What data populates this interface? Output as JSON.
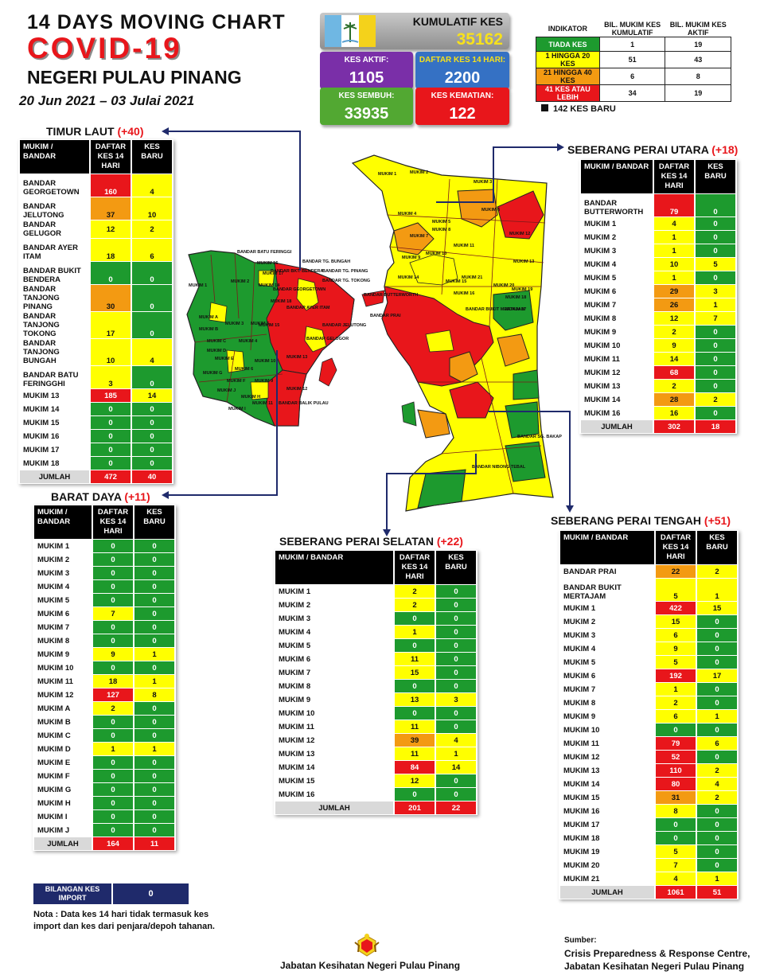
{
  "header": {
    "line1": "14  DAYS MOVING CHART",
    "line2": "COVID-19",
    "line3": "NEGERI PULAU PINANG",
    "dates": "20 Jun 2021 – 03 Julai 2021"
  },
  "kpi": {
    "kumulatif_label": "KUMULATIF KES",
    "kumulatif_value": "35162",
    "aktif_label": "KES AKTIF:",
    "aktif_value": "1105",
    "daftar_label": "DAFTAR KES 14 HARI:",
    "daftar_value": "2200",
    "sembuh_label": "KES SEMBUH:",
    "sembuh_value": "33935",
    "kematian_label": "KES KEMATIAN:",
    "kematian_value": "122"
  },
  "indicator": {
    "headers": [
      "INDIKATOR",
      "BIL. MUKIM KES KUMULATIF",
      "BIL. MUKIM KES AKTIF"
    ],
    "rows": [
      {
        "label": "TIADA KES",
        "kumulatif": "1",
        "aktif": "19",
        "color": "#1d9a2e",
        "text": "#ffffff"
      },
      {
        "label": "1 HINGGA 20 KES",
        "kumulatif": "51",
        "aktif": "43",
        "color": "#ffff00",
        "text": "#111111"
      },
      {
        "label": "21 HINGGA 40 KES",
        "kumulatif": "6",
        "aktif": "8",
        "color": "#f39a12",
        "text": "#111111"
      },
      {
        "label": "41 KES ATAU LEBIH",
        "kumulatif": "34",
        "aktif": "19",
        "color": "#e8161b",
        "text": "#ffffff"
      }
    ],
    "new_cases": "142 KES BARU"
  },
  "colors": {
    "green": "#1d9a2e",
    "yellow": "#ffff00",
    "orange": "#f39a12",
    "red": "#e8161b",
    "navy": "#1f2a6b"
  },
  "col_headers": {
    "mukim_bandar": "MUKIM / BANDAR",
    "daftar": "DAFTAR KES 14 HARI",
    "baru": "KES BARU",
    "total": "JUMLAH"
  },
  "sections": {
    "timur_laut": {
      "title": "TIMUR LAUT",
      "inc": "(+40)",
      "rows": [
        [
          "BANDAR GEORGETOWN",
          "160",
          "4"
        ],
        [
          "BANDAR JELUTONG",
          "37",
          "10"
        ],
        [
          "BANDAR GELUGOR",
          "12",
          "2"
        ],
        [
          "BANDAR AYER ITAM",
          "18",
          "6"
        ],
        [
          "BANDAR BUKIT BENDERA",
          "0",
          "0"
        ],
        [
          "BANDAR TANJONG PINANG",
          "30",
          "0"
        ],
        [
          "BANDAR TANJONG TOKONG",
          "17",
          "0"
        ],
        [
          "BANDAR TANJONG BUNGAH",
          "10",
          "4"
        ],
        [
          "BANDAR BATU FERINGGHI",
          "3",
          "0"
        ],
        [
          "MUKIM 13",
          "185",
          "14"
        ],
        [
          "MUKIM 14",
          "0",
          "0"
        ],
        [
          "MUKIM 15",
          "0",
          "0"
        ],
        [
          "MUKIM 16",
          "0",
          "0"
        ],
        [
          "MUKIM 17",
          "0",
          "0"
        ],
        [
          "MUKIM 18",
          "0",
          "0"
        ]
      ],
      "total": [
        "472",
        "40"
      ]
    },
    "barat_daya": {
      "title": "BARAT DAYA",
      "inc": "(+11)",
      "rows": [
        [
          "MUKIM 1",
          "0",
          "0"
        ],
        [
          "MUKIM 2",
          "0",
          "0"
        ],
        [
          "MUKIM 3",
          "0",
          "0"
        ],
        [
          "MUKIM 4",
          "0",
          "0"
        ],
        [
          "MUKIM 5",
          "0",
          "0"
        ],
        [
          "MUKIM 6",
          "7",
          "0"
        ],
        [
          "MUKIM 7",
          "0",
          "0"
        ],
        [
          "MUKIM 8",
          "0",
          "0"
        ],
        [
          "MUKIM 9",
          "9",
          "1"
        ],
        [
          "MUKIM 10",
          "0",
          "0"
        ],
        [
          "MUKIM 11",
          "18",
          "1"
        ],
        [
          "MUKIM 12",
          "127",
          "8"
        ],
        [
          "MUKIM A",
          "2",
          "0"
        ],
        [
          "MUKIM B",
          "0",
          "0"
        ],
        [
          "MUKIM C",
          "0",
          "0"
        ],
        [
          "MUKIM D",
          "1",
          "1"
        ],
        [
          "MUKIM E",
          "0",
          "0"
        ],
        [
          "MUKIM F",
          "0",
          "0"
        ],
        [
          "MUKIM G",
          "0",
          "0"
        ],
        [
          "MUKIM H",
          "0",
          "0"
        ],
        [
          "MUKIM I",
          "0",
          "0"
        ],
        [
          "MUKIM J",
          "0",
          "0"
        ]
      ],
      "total": [
        "164",
        "11"
      ]
    },
    "spu": {
      "title": "SEBERANG PERAI UTARA",
      "inc": "(+18)",
      "rows": [
        [
          "BANDAR BUTTERWORTH",
          "79",
          "0"
        ],
        [
          "MUKIM 1",
          "4",
          "0"
        ],
        [
          "MUKIM 2",
          "1",
          "0"
        ],
        [
          "MUKIM 3",
          "1",
          "0"
        ],
        [
          "MUKIM 4",
          "10",
          "5"
        ],
        [
          "MUKIM 5",
          "1",
          "0"
        ],
        [
          "MUKIM 6",
          "29",
          "3"
        ],
        [
          "MUKIM 7",
          "26",
          "1"
        ],
        [
          "MUKIM 8",
          "12",
          "7"
        ],
        [
          "MUKIM 9",
          "2",
          "0"
        ],
        [
          "MUKIM 10",
          "9",
          "0"
        ],
        [
          "MUKIM 11",
          "14",
          "0"
        ],
        [
          "MUKIM 12",
          "68",
          "0"
        ],
        [
          "MUKIM 13",
          "2",
          "0"
        ],
        [
          "MUKIM 14",
          "28",
          "2"
        ],
        [
          "MUKIM 16",
          "16",
          "0"
        ]
      ],
      "total": [
        "302",
        "18"
      ]
    },
    "sps": {
      "title": "SEBERANG PERAI SELATAN",
      "inc": "(+22)",
      "rows": [
        [
          "MUKIM 1",
          "2",
          "0"
        ],
        [
          "MUKIM 2",
          "2",
          "0"
        ],
        [
          "MUKIM 3",
          "0",
          "0"
        ],
        [
          "MUKIM 4",
          "1",
          "0"
        ],
        [
          "MUKIM 5",
          "0",
          "0"
        ],
        [
          "MUKIM 6",
          "11",
          "0"
        ],
        [
          "MUKIM 7",
          "15",
          "0"
        ],
        [
          "MUKIM 8",
          "0",
          "0"
        ],
        [
          "MUKIM 9",
          "13",
          "3"
        ],
        [
          "MUKIM 10",
          "0",
          "0"
        ],
        [
          "MUKIM 11",
          "11",
          "0"
        ],
        [
          "MUKIM 12",
          "39",
          "4"
        ],
        [
          "MUKIM 13",
          "11",
          "1"
        ],
        [
          "MUKIM 14",
          "84",
          "14"
        ],
        [
          "MUKIM 15",
          "12",
          "0"
        ],
        [
          "MUKIM 16",
          "0",
          "0"
        ]
      ],
      "total": [
        "201",
        "22"
      ]
    },
    "spt": {
      "title": "SEBERANG PERAI TENGAH",
      "inc": "(+51)",
      "rows": [
        [
          "BANDAR PRAI",
          "22",
          "2"
        ],
        [
          "BANDAR BUKIT MERTAJAM",
          "5",
          "1"
        ],
        [
          "MUKIM 1",
          "422",
          "15"
        ],
        [
          "MUKIM 2",
          "15",
          "0"
        ],
        [
          "MUKIM 3",
          "6",
          "0"
        ],
        [
          "MUKIM 4",
          "9",
          "0"
        ],
        [
          "MUKIM 5",
          "5",
          "0"
        ],
        [
          "MUKIM 6",
          "192",
          "17"
        ],
        [
          "MUKIM 7",
          "1",
          "0"
        ],
        [
          "MUKIM 8",
          "2",
          "0"
        ],
        [
          "MUKIM 9",
          "6",
          "1"
        ],
        [
          "MUKIM 10",
          "0",
          "0"
        ],
        [
          "MUKIM 11",
          "79",
          "6"
        ],
        [
          "MUKIM 12",
          "52",
          "0"
        ],
        [
          "MUKIM 13",
          "110",
          "2"
        ],
        [
          "MUKIM 14",
          "80",
          "4"
        ],
        [
          "MUKIM 15",
          "31",
          "2"
        ],
        [
          "MUKIM 16",
          "8",
          "0"
        ],
        [
          "MUKIM 17",
          "0",
          "0"
        ],
        [
          "MUKIM 18",
          "0",
          "0"
        ],
        [
          "MUKIM 19",
          "5",
          "0"
        ],
        [
          "MUKIM 20",
          "7",
          "0"
        ],
        [
          "MUKIM 21",
          "4",
          "1"
        ]
      ],
      "total": [
        "1061",
        "51"
      ]
    }
  },
  "import": {
    "label": "BILANGAN KES IMPORT",
    "value": "0"
  },
  "note": "Nota : Data kes 14 hari tidak termasuk kes import dan kes dari penjara/depoh tahanan.",
  "footer": {
    "dept": "Jabatan Kesihatan Negeri Pulau Pinang",
    "source_label": "Sumber:",
    "source_line1": "Crisis Preparedness & Response Centre,",
    "source_line2": "Jabatan Kesihatan Negeri Pulau Pinang"
  },
  "map_labels": {
    "island": [
      "BANDAR BATU FERINGGI",
      "BANDAR TG. BUNGAH",
      "BANDAR TG. PINANG",
      "BANDAR TG. TOKONG",
      "BANDAR BKT. BENDERA",
      "BANDAR GEORGETOWN",
      "BANDAR AYER ITAM",
      "BANDAR JELUTONG",
      "BANDAR GELUGOR",
      "MUKIM 1",
      "MUKIM 2",
      "MUKIM 3",
      "MUKIM 4",
      "MUKIM 5",
      "MUKIM 6",
      "MUKIM 9",
      "MUKIM 10",
      "MUKIM 11",
      "MUKIM 12",
      "MUKIM 13",
      "MUKIM 14",
      "MUKIM 15",
      "MUKIM 16",
      "MUKIM 17",
      "MUKIM 18",
      "MUKIM A",
      "MUKIM B",
      "MUKIM C",
      "MUKIM D",
      "MUKIM E",
      "MUKIM F",
      "MUKIM G",
      "MUKIM H",
      "MUKIM I",
      "MUKIM J",
      "BANDAR BALIK PULAU"
    ],
    "mainland": [
      "MUKIM 1",
      "MUKIM 2",
      "MUKIM 3",
      "MUKIM 4",
      "MUKIM 5",
      "MUKIM 6",
      "MUKIM 7",
      "MUKIM 8",
      "MUKIM 9",
      "MUKIM 10",
      "MUKIM 11",
      "MUKIM 12",
      "MUKIM 13",
      "MUKIM 14",
      "MUKIM 15",
      "MUKIM 16",
      "MUKIM 17",
      "MUKIM 18",
      "MUKIM 19",
      "MUKIM 20",
      "MUKIM 21",
      "BANDAR BUTTERWORTH",
      "BANDAR PRAI",
      "BANDAR BUKIT MERTAJAM",
      "BANDAR SG. BAKAP",
      "BANDAR NIBONG TEBAL"
    ]
  }
}
